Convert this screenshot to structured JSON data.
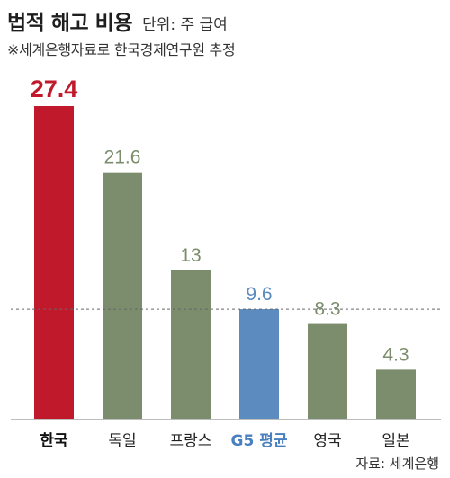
{
  "title": "법적 해고 비용",
  "unit_note": "단위: 주 급여",
  "subtitle": "※세계은행자료로 한국경제연구원 추정",
  "source": "자료: 세계은행",
  "colors": {
    "highlight": "#c0192c",
    "default": "#7b8d6c",
    "average": "#5b8bbf",
    "label_highlight": "#111111",
    "label_average": "#4a7fbf"
  },
  "chart_data": {
    "type": "bar",
    "categories": [
      "한국",
      "독일",
      "프랑스",
      "G5 평균",
      "영국",
      "일본"
    ],
    "values": [
      27.4,
      21.6,
      13,
      9.6,
      8.3,
      4.3
    ],
    "value_labels": [
      "27.4",
      "21.6",
      "13",
      "9.6",
      "8.3",
      "4.3"
    ],
    "highlight_index": 0,
    "average_index": 3,
    "reference_line": 9.6,
    "ylim": [
      0,
      27.4
    ],
    "grid": false,
    "legend": "none"
  }
}
